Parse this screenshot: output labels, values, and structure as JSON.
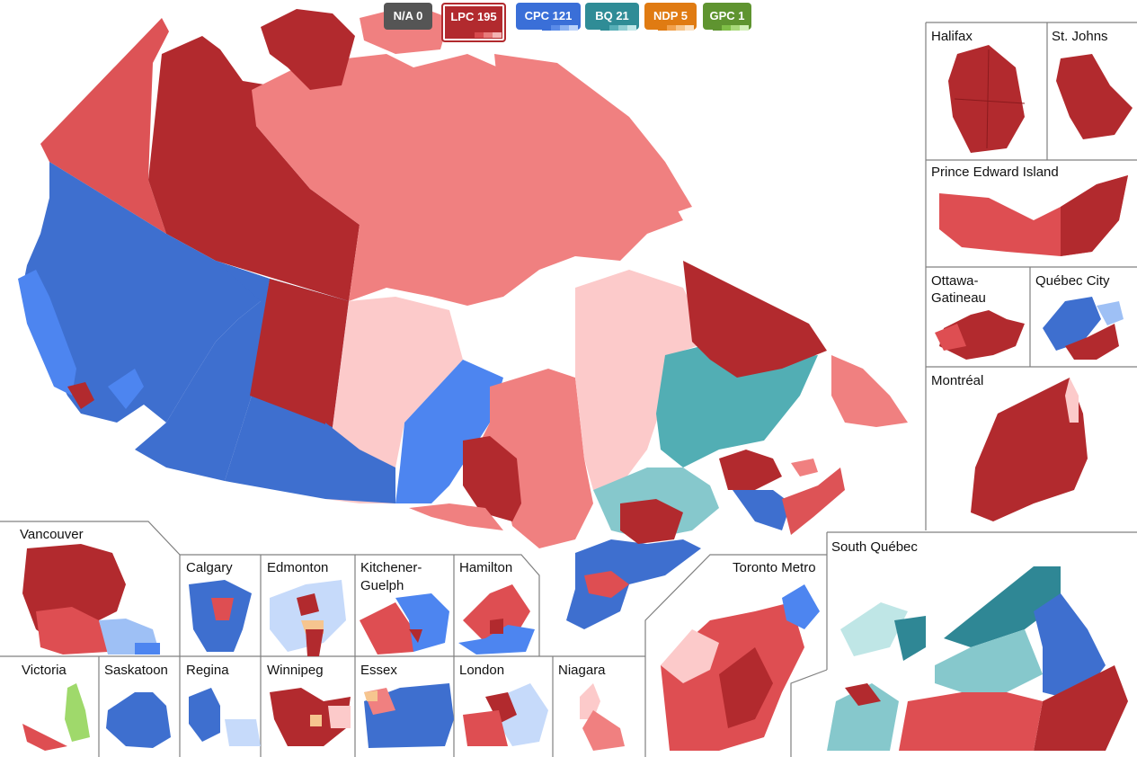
{
  "legend": {
    "parties": [
      {
        "key": "na",
        "label": "N/A 0",
        "color": "#555555",
        "shades": []
      },
      {
        "key": "lpc",
        "label": "LPC 195",
        "color": "#b22a2e",
        "shades": [
          "#b22a2e",
          "#d64b4e",
          "#e87a7a",
          "#f4b3b3"
        ],
        "active": true
      },
      {
        "key": "cpc",
        "label": "CPC 121",
        "color": "#3a6fd8",
        "shades": [
          "#3a6fd8",
          "#5a8be8",
          "#8ab0f2",
          "#bcd3fa"
        ]
      },
      {
        "key": "bq",
        "label": "BQ 21",
        "color": "#2f8c96",
        "shades": [
          "#2f8c96",
          "#56aeb6",
          "#8fcdd2",
          "#c3e7e9"
        ]
      },
      {
        "key": "ndp",
        "label": "NDP 5",
        "color": "#e07b12",
        "shades": [
          "#e07b12",
          "#f2a04a",
          "#f7c488",
          "#fbe1c2"
        ]
      },
      {
        "key": "gpc",
        "label": "GPC 1",
        "color": "#5f9430",
        "shades": [
          "#5f9430",
          "#7fbe47",
          "#a8d97a",
          "#d2efb8"
        ]
      }
    ]
  },
  "colors": {
    "lpc_dark": "#b22a2e",
    "lpc_mid": "#de4e52",
    "lpc_light": "#f08080",
    "lpc_pale": "#fccaca",
    "cpc_dark": "#3a6ccf",
    "cpc_mid": "#4d85f0",
    "cpc_light": "#9ec0f5",
    "cpc_pale": "#c6dafa",
    "bq_dark": "#2f8795",
    "bq_mid": "#52aeb4",
    "bq_light": "#86c8cc",
    "bq_pale": "#bfe6e6",
    "ndp": "#f6c58f",
    "gpc": "#9fd96b"
  },
  "insets": {
    "halifax": "Halifax",
    "stjohns": "St. Johns",
    "pei": "Prince Edward Island",
    "ottawa_line1": "Ottawa-",
    "ottawa_line2": "Gatineau",
    "quebec_city": "Québec City",
    "montreal": "Montréal",
    "south_quebec": "South Québec",
    "toronto": "Toronto Metro",
    "vancouver": "Vancouver",
    "calgary": "Calgary",
    "edmonton": "Edmonton",
    "kitchener_line1": "Kitchener-",
    "kitchener_line2": "Guelph",
    "hamilton": "Hamilton",
    "victoria": "Victoria",
    "saskatoon": "Saskatoon",
    "regina": "Regina",
    "winnipeg": "Winnipeg",
    "essex": "Essex",
    "london": "London",
    "niagara": "Niagara"
  }
}
